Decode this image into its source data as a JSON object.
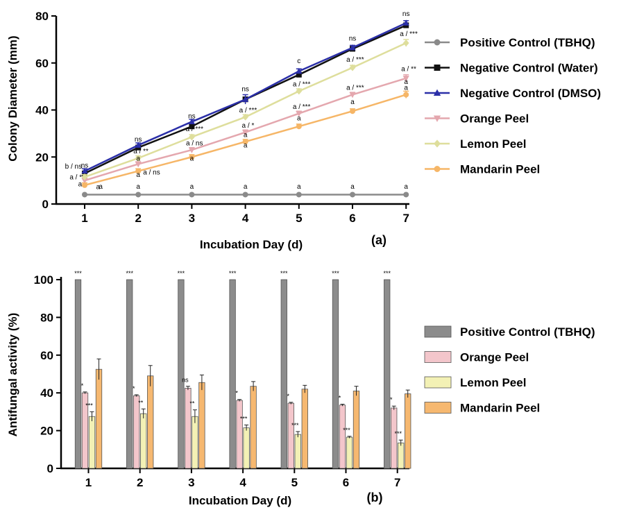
{
  "chart_data": [
    {
      "type": "line",
      "panel_label": "(a)",
      "xlabel": "Incubation Day (d)",
      "ylabel": "Colony Diameter (mm)",
      "x": [
        1,
        2,
        3,
        4,
        5,
        6,
        7
      ],
      "xlim": [
        0.5,
        7.3
      ],
      "ylim": [
        0,
        80
      ],
      "yticks": [
        0,
        20,
        40,
        60,
        80
      ],
      "legend_position": "right",
      "series": [
        {
          "name": "Positive Control (TBHQ)",
          "color": "#8a8a8a",
          "marker": "circle",
          "values": [
            4,
            4,
            4,
            4,
            4,
            4,
            4
          ],
          "errors": [
            0,
            0,
            0,
            0,
            0,
            0,
            0
          ]
        },
        {
          "name": "Negative Control (Water)",
          "color": "#111111",
          "marker": "square",
          "values": [
            13,
            24,
            33,
            44.5,
            55,
            66,
            76
          ],
          "errors": [
            1,
            1,
            1,
            1,
            1,
            1,
            1
          ]
        },
        {
          "name": "Negative Control (DMSO)",
          "color": "#2b2fa8",
          "marker": "triangle",
          "values": [
            14,
            25,
            35,
            44.5,
            56.5,
            66.5,
            77
          ],
          "errors": [
            1,
            1,
            1,
            2,
            1,
            1,
            1
          ]
        },
        {
          "name": "Orange Peel",
          "color": "#e4a7ae",
          "marker": "triangle-down",
          "values": [
            10,
            17,
            23,
            30.5,
            38.5,
            46.5,
            53.5
          ],
          "errors": [
            1,
            1,
            1,
            1,
            1,
            1,
            1.5
          ]
        },
        {
          "name": "Lemon Peel",
          "color": "#dede9c",
          "marker": "diamond",
          "values": [
            11.5,
            19.5,
            28.5,
            37,
            48,
            58,
            68.5
          ],
          "errors": [
            1,
            1,
            1,
            1,
            1,
            1,
            1.5
          ]
        },
        {
          "name": "Mandarin Peel",
          "color": "#f6b667",
          "marker": "circle",
          "values": [
            8,
            14,
            20,
            26.5,
            33,
            39.5,
            46.5
          ],
          "errors": [
            1,
            1,
            1,
            1,
            1,
            1,
            1.5
          ]
        }
      ],
      "annotations": [
        {
          "x": 1,
          "y": 15.5,
          "text": "ns"
        },
        {
          "x": 0.95,
          "y": 15,
          "text": "b / ns",
          "anchor": "end"
        },
        {
          "x": 0.95,
          "y": 10.5,
          "text": "a / *",
          "anchor": "end"
        },
        {
          "x": 0.95,
          "y": 7.5,
          "text": "a",
          "anchor": "end"
        },
        {
          "x": 1.25,
          "y": 6.3,
          "text": "a"
        },
        {
          "x": 2,
          "y": 26.5,
          "text": "ns"
        },
        {
          "x": 2.05,
          "y": 21.5,
          "text": "a / **"
        },
        {
          "x": 2,
          "y": 18.5,
          "text": "a"
        },
        {
          "x": 2.25,
          "y": 12.5,
          "text": "a / ns"
        },
        {
          "x": 2,
          "y": 11.5,
          "text": "a"
        },
        {
          "x": 3,
          "y": 36.5,
          "text": "ns"
        },
        {
          "x": 3.05,
          "y": 31,
          "text": "a / ***"
        },
        {
          "x": 3.05,
          "y": 25,
          "text": "a / ns"
        },
        {
          "x": 3,
          "y": 18.5,
          "text": "a"
        },
        {
          "x": 4,
          "y": 48,
          "text": "ns"
        },
        {
          "x": 4.05,
          "y": 39,
          "text": "a / ***"
        },
        {
          "x": 4.05,
          "y": 32.5,
          "text": "a / *"
        },
        {
          "x": 4,
          "y": 28.5,
          "text": "a"
        },
        {
          "x": 4,
          "y": 24,
          "text": "a"
        },
        {
          "x": 5,
          "y": 60,
          "text": "c"
        },
        {
          "x": 5.05,
          "y": 50,
          "text": "a / ***"
        },
        {
          "x": 5.05,
          "y": 40.5,
          "text": "a / ***"
        },
        {
          "x": 5,
          "y": 35.5,
          "text": "a"
        },
        {
          "x": 6,
          "y": 69.5,
          "text": "ns"
        },
        {
          "x": 6.05,
          "y": 60.5,
          "text": "a / ***"
        },
        {
          "x": 6.05,
          "y": 48.5,
          "text": "a / ***"
        },
        {
          "x": 6,
          "y": 42.5,
          "text": "a"
        },
        {
          "x": 7,
          "y": 80,
          "text": "ns"
        },
        {
          "x": 7.05,
          "y": 71.5,
          "text": "a / ***"
        },
        {
          "x": 7.05,
          "y": 56.5,
          "text": "a / **"
        },
        {
          "x": 7,
          "y": 51,
          "text": "a"
        },
        {
          "x": 7,
          "y": 48.5,
          "text": "a"
        },
        {
          "x": 1.3,
          "y": 6.5,
          "text": "a"
        },
        {
          "x": 2,
          "y": 6.5,
          "text": "a"
        },
        {
          "x": 3,
          "y": 6.5,
          "text": "a"
        },
        {
          "x": 4,
          "y": 6.5,
          "text": "a"
        },
        {
          "x": 5,
          "y": 6.5,
          "text": "a"
        },
        {
          "x": 6,
          "y": 6.5,
          "text": "a"
        },
        {
          "x": 7,
          "y": 6.5,
          "text": "a"
        }
      ]
    },
    {
      "type": "bar",
      "panel_label": "(b)",
      "xlabel": "Incubation Day (d)",
      "ylabel": "Antifungal activity (%)",
      "categories": [
        "1",
        "2",
        "3",
        "4",
        "5",
        "6",
        "7"
      ],
      "ylim": [
        0,
        100
      ],
      "yticks": [
        0,
        20,
        40,
        60,
        80,
        100
      ],
      "legend_position": "right",
      "series": [
        {
          "name": "Positive Control (TBHQ)",
          "color": "#8c8c8c",
          "values": [
            100,
            100,
            100,
            100,
            100,
            100,
            100
          ],
          "errors": [
            0,
            0,
            0,
            0,
            0,
            0,
            0
          ],
          "labels": [
            "***",
            "***",
            "***",
            "***",
            "***",
            "***",
            "***"
          ]
        },
        {
          "name": "Orange Peel",
          "color": "#f3c6cb",
          "values": [
            40,
            38.5,
            42.5,
            36,
            34.5,
            33.5,
            32
          ],
          "errors": [
            0.5,
            0.5,
            1,
            0.5,
            0.5,
            0.5,
            1
          ],
          "labels": [
            "*",
            "*",
            "ns",
            "*",
            "*",
            "*",
            "*"
          ]
        },
        {
          "name": "Lemon Peel",
          "color": "#f3f1b5",
          "values": [
            27.5,
            29,
            27.5,
            21.5,
            18,
            16.5,
            13.5
          ],
          "errors": [
            2.5,
            2.5,
            3.5,
            1.5,
            1.5,
            0.5,
            1.5
          ],
          "labels": [
            "***",
            "**",
            "**",
            "***",
            "***",
            "***",
            "***"
          ]
        },
        {
          "name": "Mandarin Peel",
          "color": "#f6b870",
          "values": [
            52.5,
            49,
            45.5,
            43.5,
            42,
            41,
            39.5
          ],
          "errors": [
            5.5,
            5.5,
            4,
            2.5,
            2,
            2.5,
            2
          ],
          "labels": [
            "",
            "",
            "",
            "",
            "",
            "",
            ""
          ]
        }
      ]
    }
  ]
}
